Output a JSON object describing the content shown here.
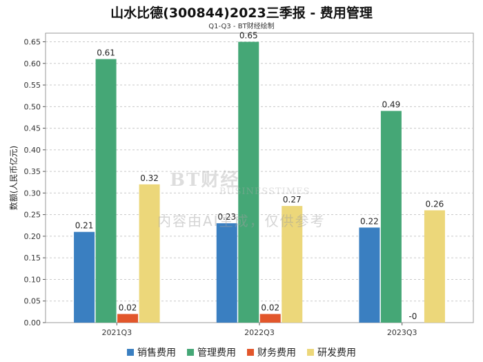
{
  "title": "山水比德(300844)2023三季报 - 费用管理",
  "subtitle": "Q1-Q3 - BT财经绘制",
  "watermark": {
    "logo": "BT财经",
    "logo_sub": "BUSINESSTIMES",
    "text": "内容由AI生成，仅供参考"
  },
  "colors": {
    "销售费用": "#3a7fc1",
    "管理费用": "#45a776",
    "财务费用": "#e2562b",
    "研发费用": "#ecd77a",
    "grid": "#c8c8c8",
    "axis": "#555555"
  },
  "chart_data": {
    "type": "bar",
    "title": "山水比德(300844)2023三季报 - 费用管理",
    "subtitle": "Q1-Q3 - BT财经绘制",
    "xlabel": "",
    "ylabel": "数额(人民币亿元)",
    "ylim": [
      0,
      0.67
    ],
    "yticks": [
      0.0,
      0.05,
      0.1,
      0.15,
      0.2,
      0.25,
      0.3,
      0.35,
      0.4,
      0.45,
      0.5,
      0.55,
      0.6,
      0.65
    ],
    "categories": [
      "2021Q3",
      "2022Q3",
      "2023Q3"
    ],
    "series": [
      {
        "name": "销售费用",
        "values": [
          0.21,
          0.23,
          0.22
        ],
        "labels": [
          "0.21",
          "0.23",
          "0.22"
        ]
      },
      {
        "name": "管理费用",
        "values": [
          0.61,
          0.65,
          0.49
        ],
        "labels": [
          "0.61",
          "0.65",
          "0.49"
        ]
      },
      {
        "name": "财务费用",
        "values": [
          0.02,
          0.02,
          0.0
        ],
        "labels": [
          "0.02",
          "0.02",
          "-0"
        ]
      },
      {
        "name": "研发费用",
        "values": [
          0.32,
          0.27,
          0.26
        ],
        "labels": [
          "0.32",
          "0.27",
          "0.26"
        ]
      }
    ],
    "grid": true,
    "legend_position": "bottom"
  }
}
